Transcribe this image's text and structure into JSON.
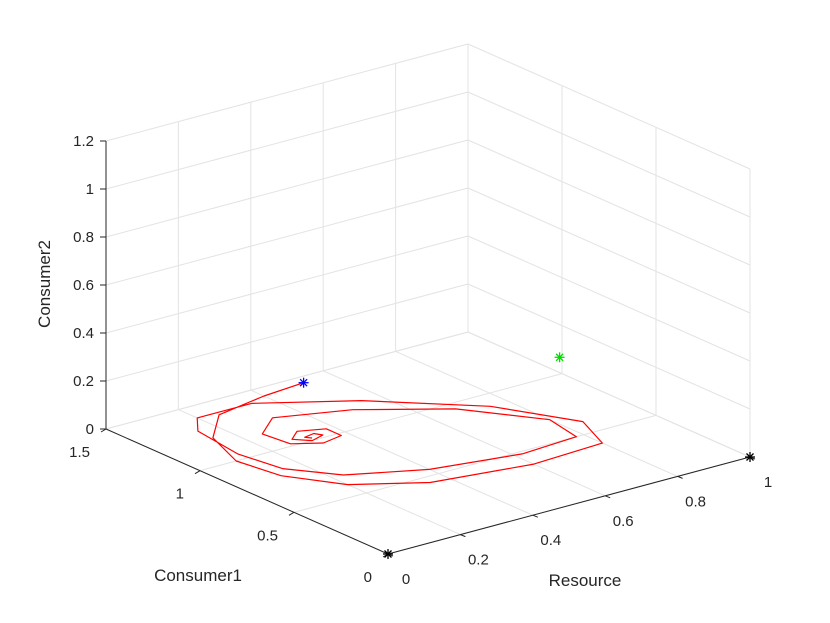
{
  "chart_data": {
    "type": "line3d",
    "title": "",
    "axes": {
      "x": {
        "label": "Resource",
        "lim": [
          0,
          1
        ],
        "ticks": [
          0,
          0.2,
          0.4,
          0.6,
          0.8,
          1
        ],
        "tick_labels": [
          "0",
          "0.2",
          "0.4",
          "0.6",
          "0.8",
          "1"
        ]
      },
      "y": {
        "label": "Consumer1",
        "lim": [
          0,
          1.5
        ],
        "ticks": [
          0,
          0.5,
          1,
          1.5
        ],
        "tick_labels": [
          "0",
          "0.5",
          "1",
          "1.5"
        ]
      },
      "z": {
        "label": "Consumer2",
        "lim": [
          0,
          1.2
        ],
        "ticks": [
          0,
          0.2,
          0.4,
          0.6,
          0.8,
          1,
          1.2
        ],
        "tick_labels": [
          "0",
          "0.2",
          "0.4",
          "0.6",
          "0.8",
          "1",
          "1.2"
        ]
      }
    },
    "grid": true,
    "series": [
      {
        "kind": "trajectory",
        "color": "#ff0000",
        "points": [
          [
            0.52,
            1.45,
            0
          ],
          [
            0.4,
            1.43,
            0
          ],
          [
            0.25,
            1.38,
            0
          ],
          [
            0.15,
            1.22,
            0
          ],
          [
            0.1,
            1.0,
            0
          ],
          [
            0.12,
            0.8,
            0
          ],
          [
            0.2,
            0.6,
            0
          ],
          [
            0.35,
            0.45,
            0
          ],
          [
            0.6,
            0.38,
            0
          ],
          [
            0.8,
            0.4,
            0
          ],
          [
            0.85,
            0.6,
            0
          ],
          [
            0.75,
            0.9,
            0
          ],
          [
            0.55,
            1.2,
            0
          ],
          [
            0.35,
            1.4,
            0
          ],
          [
            0.2,
            1.4,
            0
          ],
          [
            0.15,
            1.3,
            0
          ],
          [
            0.13,
            1.05,
            0
          ],
          [
            0.15,
            0.85,
            0
          ],
          [
            0.23,
            0.68,
            0
          ],
          [
            0.4,
            0.55,
            0
          ],
          [
            0.62,
            0.48,
            0
          ],
          [
            0.78,
            0.5,
            0
          ],
          [
            0.8,
            0.68,
            0
          ],
          [
            0.68,
            0.95,
            0
          ],
          [
            0.5,
            1.15,
            0
          ],
          [
            0.33,
            1.25,
            0
          ],
          [
            0.25,
            1.15,
            0
          ],
          [
            0.26,
            1.02,
            0
          ],
          [
            0.32,
            0.96,
            0
          ],
          [
            0.38,
            0.98,
            0
          ],
          [
            0.38,
            1.06,
            0
          ],
          [
            0.32,
            1.1,
            0
          ],
          [
            0.28,
            1.05,
            0
          ],
          [
            0.31,
            1.0,
            0
          ],
          [
            0.35,
            1.02,
            0
          ],
          [
            0.34,
            1.05,
            0
          ],
          [
            0.31,
            1.04,
            0
          ],
          [
            0.32,
            1.02,
            0
          ]
        ]
      },
      {
        "kind": "point",
        "color": "#0000ff",
        "marker": "*",
        "point": [
          0.52,
          1.45,
          0
        ]
      },
      {
        "kind": "point",
        "color": "#00dd00",
        "marker": "*",
        "point": [
          0.5,
          0.05,
          0.6
        ]
      },
      {
        "kind": "point",
        "color": "#000000",
        "marker": "*",
        "point": [
          0,
          0,
          0
        ]
      },
      {
        "kind": "point",
        "color": "#000000",
        "marker": "*",
        "point": [
          1,
          0,
          0
        ]
      }
    ]
  }
}
